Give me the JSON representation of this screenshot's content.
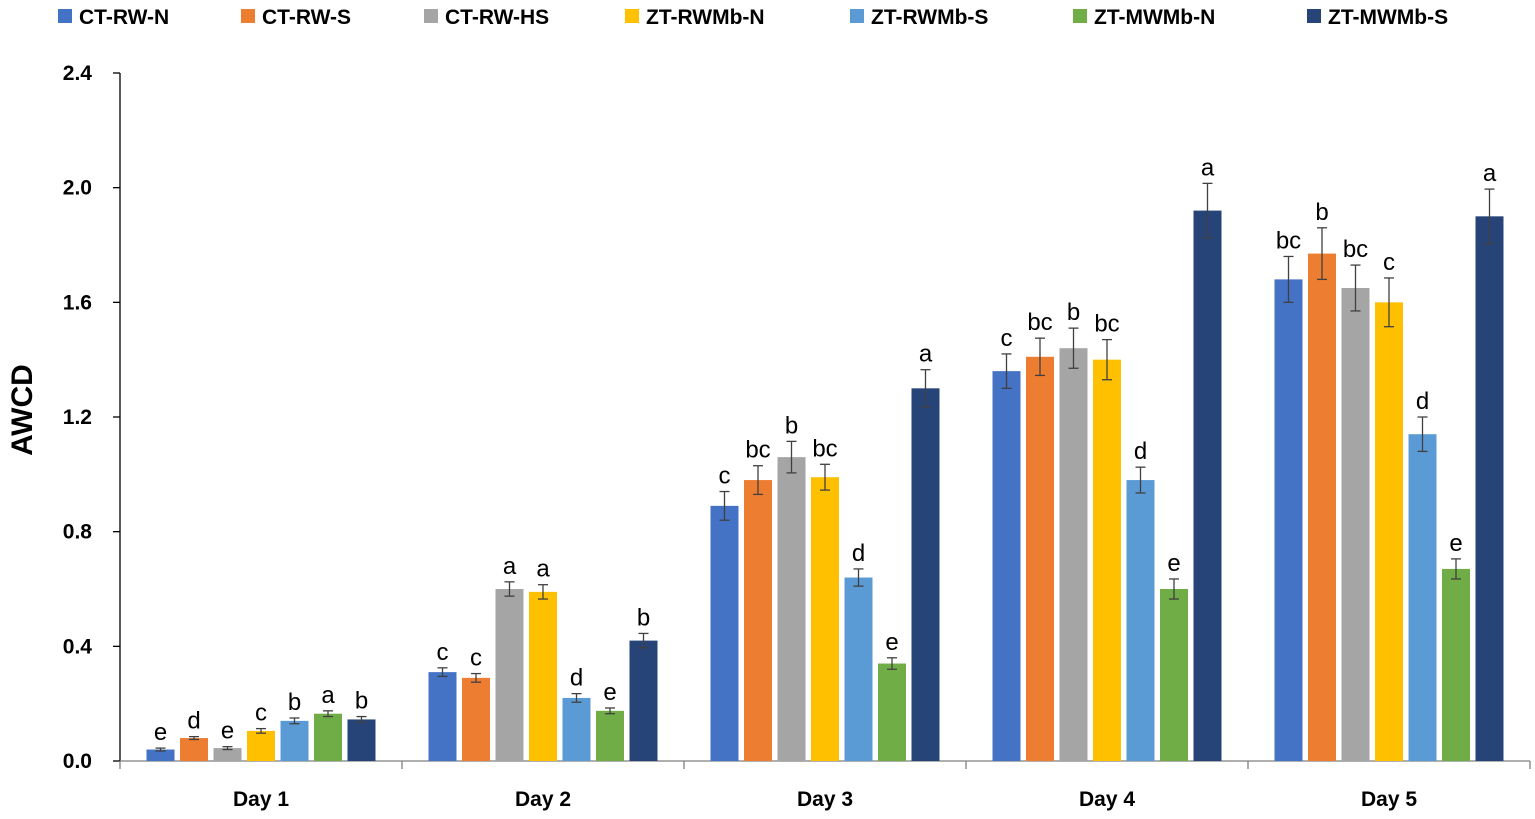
{
  "chart_data": {
    "type": "bar",
    "title": "",
    "xlabel": "",
    "ylabel": "AWCD",
    "ylim": [
      0,
      2.4
    ],
    "yticks": [
      "0.0",
      "0.4",
      "0.8",
      "1.2",
      "1.6",
      "2.0",
      "2.4"
    ],
    "legend_position": "top",
    "grid": false,
    "categories": [
      "Day 1",
      "Day 2",
      "Day 3",
      "Day 4",
      "Day 5"
    ],
    "series": [
      {
        "name": "CT-RW-N",
        "color": "#4472C4",
        "values": [
          0.04,
          0.31,
          0.89,
          1.36,
          1.68
        ],
        "errors": [
          0.005,
          0.015,
          0.05,
          0.06,
          0.08
        ],
        "labels": [
          "e",
          "c",
          "c",
          "c",
          "bc"
        ]
      },
      {
        "name": "CT-RW-S",
        "color": "#ED7D31",
        "values": [
          0.08,
          0.29,
          0.98,
          1.41,
          1.77
        ],
        "errors": [
          0.005,
          0.015,
          0.05,
          0.065,
          0.09
        ],
        "labels": [
          "d",
          "c",
          "bc",
          "bc",
          "b"
        ]
      },
      {
        "name": "CT-RW-HS",
        "color": "#A5A5A5",
        "values": [
          0.045,
          0.6,
          1.06,
          1.44,
          1.65
        ],
        "errors": [
          0.005,
          0.025,
          0.055,
          0.07,
          0.08
        ],
        "labels": [
          "e",
          "a",
          "b",
          "b",
          "bc"
        ]
      },
      {
        "name": "ZT-RWMb-N",
        "color": "#FFC000",
        "values": [
          0.105,
          0.59,
          0.99,
          1.4,
          1.6
        ],
        "errors": [
          0.008,
          0.025,
          0.045,
          0.07,
          0.085
        ],
        "labels": [
          "c",
          "a",
          "bc",
          "bc",
          "c"
        ]
      },
      {
        "name": "ZT-RWMb-S",
        "color": "#5B9BD5",
        "values": [
          0.14,
          0.22,
          0.64,
          0.98,
          1.14
        ],
        "errors": [
          0.01,
          0.015,
          0.03,
          0.045,
          0.06
        ],
        "labels": [
          "b",
          "d",
          "d",
          "d",
          "d"
        ]
      },
      {
        "name": "ZT-MWMb-N",
        "color": "#70AD47",
        "values": [
          0.165,
          0.175,
          0.34,
          0.6,
          0.67
        ],
        "errors": [
          0.01,
          0.01,
          0.02,
          0.035,
          0.035
        ],
        "labels": [
          "a",
          "e",
          "e",
          "e",
          "e"
        ]
      },
      {
        "name": "ZT-MWMb-S",
        "color": "#264478",
        "values": [
          0.145,
          0.42,
          1.3,
          1.92,
          1.9
        ],
        "errors": [
          0.01,
          0.025,
          0.065,
          0.095,
          0.095
        ],
        "labels": [
          "b",
          "b",
          "a",
          "a",
          "a"
        ]
      }
    ]
  }
}
